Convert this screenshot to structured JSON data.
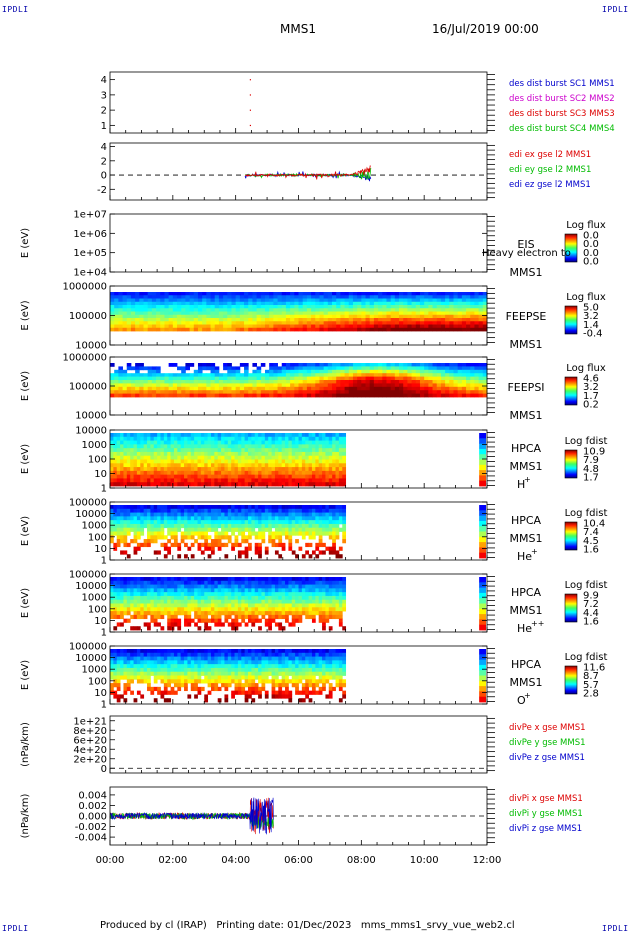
{
  "header": {
    "corner_tl": "IPDLI",
    "corner_tr": "IPDLI",
    "corner_bl": "IPDLI",
    "corner_br": "IPDLI",
    "satellite": "MMS1",
    "date": "16/Jul/2019 00:00"
  },
  "footer": {
    "text": "Produced by cl (IRAP)   Printing date: 01/Dec/2023   mms_mms1_srvy_vue_web2.cl"
  },
  "x_axis": {
    "ticks": [
      "00:00",
      "02:00",
      "04:00",
      "06:00",
      "08:00",
      "10:00",
      "12:00"
    ],
    "range_hours": [
      0,
      12
    ]
  },
  "colors": {
    "red": "#dd0000",
    "magenta": "#cc00cc",
    "green": "#00bb00",
    "blue": "#0000cc"
  },
  "chart_data": [
    {
      "type": "scatter",
      "panel": "burst",
      "ylabel": "",
      "ylim": [
        0.5,
        4.5
      ],
      "yticks": [
        "4",
        "3",
        "2",
        "1"
      ],
      "legend": [
        {
          "label": "des dist burst SC1 MMS1",
          "color": "#0000cc"
        },
        {
          "label": "des dist burst SC2 MMS2",
          "color": "#cc00cc"
        },
        {
          "label": "des dist burst SC3 MMS3",
          "color": "#dd0000"
        },
        {
          "label": "des dist burst SC4 MMS4",
          "color": "#00bb00"
        }
      ],
      "points": [
        {
          "x": 4.45,
          "y": 4
        },
        {
          "x": 4.45,
          "y": 3
        },
        {
          "x": 4.45,
          "y": 2
        },
        {
          "x": 4.45,
          "y": 1
        }
      ]
    },
    {
      "type": "line",
      "panel": "edi",
      "ylabel": "(mV/m)",
      "ylim": [
        -3.5,
        4.5
      ],
      "yticks": [
        "4",
        "2",
        "0",
        "-2"
      ],
      "legend": [
        {
          "label": "edi ex gse l2 MMS1",
          "color": "#dd0000"
        },
        {
          "label": "edi ey gse l2 MMS1",
          "color": "#00bb00"
        },
        {
          "label": "edi ez gse l2 MMS1",
          "color": "#0000cc"
        }
      ],
      "data_interval_hours": [
        4.3,
        8.3
      ]
    },
    {
      "type": "heatmap",
      "panel": "eis",
      "ylabel": "E (eV)",
      "yticks": [
        "1e+07",
        "1e+06",
        "1e+05",
        "1e+04"
      ],
      "instrument": "EIS",
      "satellite": "MMS1",
      "overlay_text": "Heavy electron to",
      "colorbar_title": "Log flux",
      "colorbar_ticks": [
        "0.0",
        "0.0",
        "0.0",
        "0.0"
      ]
    },
    {
      "type": "heatmap",
      "panel": "feepse",
      "ylabel": "E (eV)",
      "yticks": [
        "1000000",
        "100000",
        "10000"
      ],
      "instrument": "FEEPSE",
      "satellite": "MMS1",
      "colorbar_title": "Log flux",
      "colorbar_ticks": [
        "5.0",
        "3.2",
        "1.4",
        "-0.4"
      ]
    },
    {
      "type": "heatmap",
      "panel": "feepsi",
      "ylabel": "E (eV)",
      "yticks": [
        "1000000",
        "100000",
        "10000"
      ],
      "instrument": "FEEPSI",
      "satellite": "MMS1",
      "colorbar_title": "Log flux",
      "colorbar_ticks": [
        "4.6",
        "3.2",
        "1.7",
        "0.2"
      ]
    },
    {
      "type": "heatmap",
      "panel": "hpca_h",
      "ylabel": "E (eV)",
      "yticks": [
        "10000",
        "1000",
        "100",
        "10",
        "1"
      ],
      "instrument": "HPCA",
      "satellite": "MMS1",
      "species": "H",
      "charge": "+",
      "colorbar_title": "Log fdist",
      "colorbar_ticks": [
        "10.9",
        "7.9",
        "4.8",
        "1.7"
      ],
      "data_interval_hours": [
        0,
        7.5
      ]
    },
    {
      "type": "heatmap",
      "panel": "hpca_he",
      "ylabel": "E (eV)",
      "yticks": [
        "100000",
        "10000",
        "1000",
        "100",
        "10",
        "1"
      ],
      "instrument": "HPCA",
      "satellite": "MMS1",
      "species": "He",
      "charge": "+",
      "colorbar_title": "Log fdist",
      "colorbar_ticks": [
        "10.4",
        "7.4",
        "4.5",
        "1.6"
      ],
      "data_interval_hours": [
        0,
        7.5
      ]
    },
    {
      "type": "heatmap",
      "panel": "hpca_hepp",
      "ylabel": "E (eV)",
      "yticks": [
        "100000",
        "10000",
        "1000",
        "100",
        "10",
        "1"
      ],
      "instrument": "HPCA",
      "satellite": "MMS1",
      "species": "He",
      "charge": "++",
      "colorbar_title": "Log fdist",
      "colorbar_ticks": [
        "9.9",
        "7.2",
        "4.4",
        "1.6"
      ],
      "data_interval_hours": [
        0,
        7.5
      ]
    },
    {
      "type": "heatmap",
      "panel": "hpca_o",
      "ylabel": "E (eV)",
      "yticks": [
        "100000",
        "10000",
        "1000",
        "100",
        "10",
        "1"
      ],
      "instrument": "HPCA",
      "satellite": "MMS1",
      "species": "O",
      "charge": "+",
      "colorbar_title": "Log fdist",
      "colorbar_ticks": [
        "11.6",
        "8.7",
        "5.7",
        "2.8"
      ],
      "data_interval_hours": [
        0,
        7.5
      ]
    },
    {
      "type": "line",
      "panel": "divpe",
      "ylabel": "(nPa/km)",
      "ylim": [
        -1e+20,
        1.1e+21
      ],
      "yticks": [
        "1e+21",
        "8e+20",
        "6e+20",
        "4e+20",
        "2e+20",
        "0"
      ],
      "legend": [
        {
          "label": "divPe x gse MMS1",
          "color": "#dd0000"
        },
        {
          "label": "divPe y gse MMS1",
          "color": "#00bb00"
        },
        {
          "label": "divPe z gse MMS1",
          "color": "#0000cc"
        }
      ]
    },
    {
      "type": "line",
      "panel": "divpi",
      "ylabel": "(nPa/km)",
      "ylim": [
        -0.0055,
        0.0055
      ],
      "yticks": [
        "0.004",
        "0.002",
        "0.000",
        "-0.002",
        "-0.004"
      ],
      "legend": [
        {
          "label": "divPi x gse MMS1",
          "color": "#dd0000"
        },
        {
          "label": "divPi y gse MMS1",
          "color": "#00bb00"
        },
        {
          "label": "divPi z gse MMS1",
          "color": "#0000cc"
        }
      ],
      "data_interval_hours": [
        0,
        5.2
      ]
    }
  ]
}
